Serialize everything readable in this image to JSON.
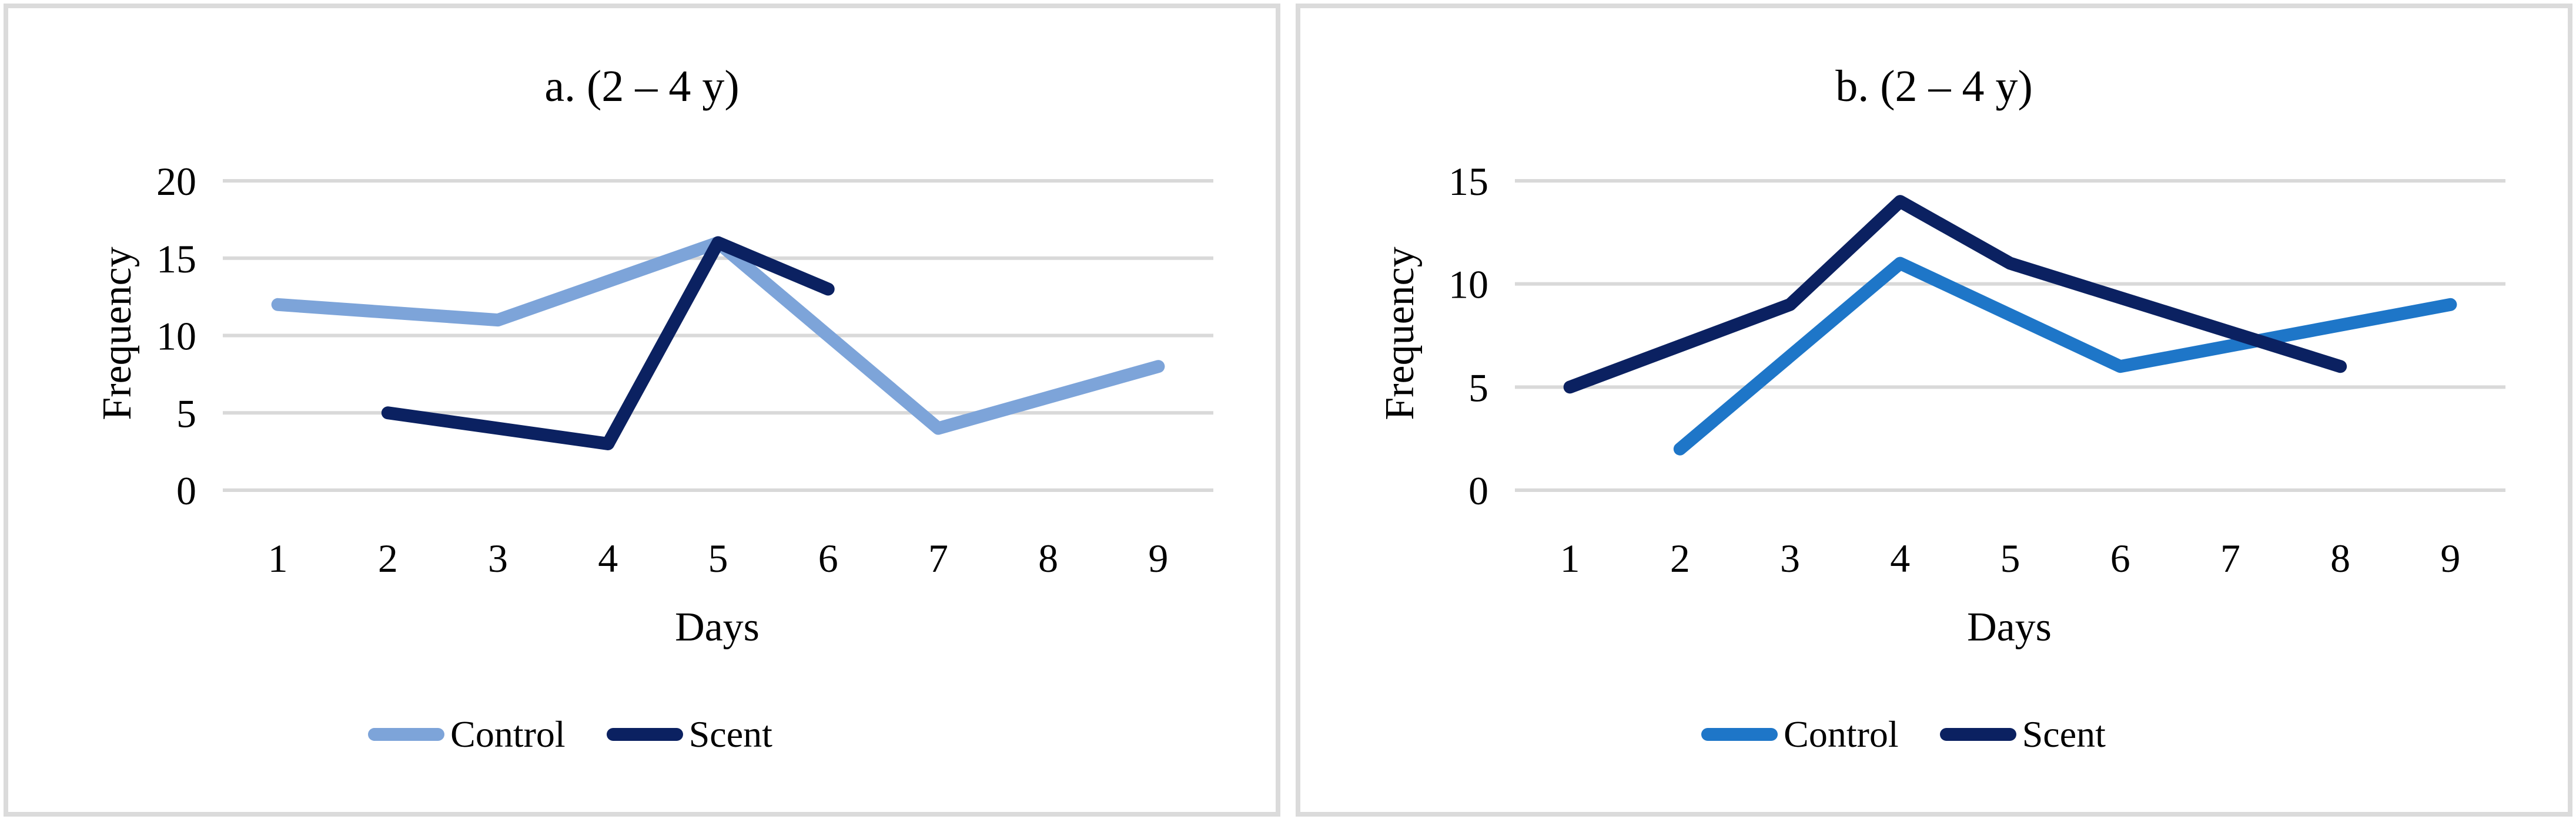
{
  "colors": {
    "gridline": "#D9D9D9",
    "panel_border": "#DBDBDB",
    "text": "#000000",
    "control_a": "#7DA4D9",
    "control_b": "#1E76C8",
    "scent": "#0B2161"
  },
  "chart_data": [
    {
      "type": "line",
      "title": "a. (2 – 4 y)",
      "xlabel": "Days",
      "ylabel": "Frequency",
      "x_ticks": [
        1,
        2,
        3,
        4,
        5,
        6,
        7,
        8,
        9
      ],
      "y_ticks": [
        0,
        5,
        10,
        15,
        20
      ],
      "ylim": [
        0,
        20
      ],
      "grid": "horizontal",
      "legend_position": "bottom",
      "series": [
        {
          "name": "Control",
          "color": "#7DA4D9",
          "points": [
            [
              1,
              12
            ],
            [
              3,
              11
            ],
            [
              5,
              16
            ],
            [
              7,
              4
            ],
            [
              9,
              8
            ]
          ]
        },
        {
          "name": "Scent",
          "color": "#0B2161",
          "points": [
            [
              2,
              5
            ],
            [
              4,
              3
            ],
            [
              5,
              16
            ],
            [
              6,
              13
            ]
          ]
        }
      ]
    },
    {
      "type": "line",
      "title": "b. (2 – 4 y)",
      "xlabel": "Days",
      "ylabel": "Frequency",
      "x_ticks": [
        1,
        2,
        3,
        4,
        5,
        6,
        7,
        8,
        9
      ],
      "y_ticks": [
        0,
        5,
        10,
        15
      ],
      "ylim": [
        0,
        15
      ],
      "grid": "horizontal",
      "legend_position": "bottom",
      "series": [
        {
          "name": "Control",
          "color": "#1E76C8",
          "points": [
            [
              2,
              2
            ],
            [
              4,
              11
            ],
            [
              6,
              6
            ],
            [
              9,
              9
            ]
          ]
        },
        {
          "name": "Scent",
          "color": "#0B2161",
          "points": [
            [
              1,
              5
            ],
            [
              3,
              9
            ],
            [
              4,
              14
            ],
            [
              5,
              11
            ],
            [
              8,
              6
            ]
          ]
        }
      ]
    }
  ]
}
